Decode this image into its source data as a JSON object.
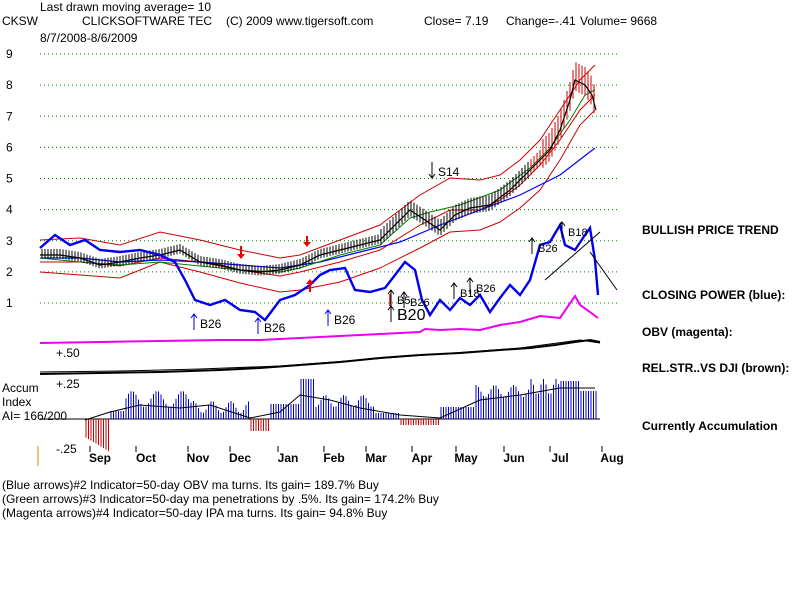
{
  "header": {
    "ticker": "CKSW",
    "company": "CLICKSOFTWARE TEC",
    "copyright": "(C) 2009 www.tigersoft.com",
    "close": "Close=  7.19",
    "change": "Change=-.41",
    "volume": "Volume= 9668",
    "ma_note": "Last drawn moving average= 10",
    "date_range": "8/7/2008-8/6/2009"
  },
  "side_labels": {
    "trend": "BULLISH PRICE TREND",
    "closing_power": "CLOSING POWER (blue):",
    "obv": "OBV (magenta):",
    "relstr": "REL.STR..VS DJI (brown):",
    "accum": "Currently Accumulation"
  },
  "accum_panel": {
    "title1": "Accum",
    "title2": "Index",
    "ai": "AI= 166/200",
    "level_50": "+.50",
    "level_25": "+.25",
    "level_neg25": "-.25"
  },
  "footer": {
    "line1": "(Blue arrows)#2 Indicator=50-day OBV ma turns. Its gain= 189.7% Buy",
    "line2": "(Green arrows)#3 Indicator=50-day ma penetrations by .5%. Its gain= 174.2% Buy",
    "line3": "(Magenta arrows)#4 Indicator=50-day IPA ma turns. Its gain= 94.8% Buy"
  },
  "colors": {
    "price": "#000000",
    "bands": "#cc0000",
    "ma50": "#0000ff",
    "ma_green": "#008000",
    "closing_power": "#0000ee",
    "obv": "#ee00ee",
    "relstr": "#000000",
    "accum_pos": "#0000cc",
    "accum_neg": "#cc0000",
    "grid": "#008000"
  },
  "chart_data": {
    "type": "line",
    "title": "CKSW CLICKSOFTWARE TEC",
    "x_ticks": [
      "Sep",
      "Oct",
      "Nov",
      "Dec",
      "Jan",
      "Feb",
      "Mar",
      "Apr",
      "May",
      "Jun",
      "Jul",
      "Aug"
    ],
    "y_ticks": [
      1,
      2,
      3,
      4,
      5,
      6,
      7,
      8,
      9
    ],
    "ylim": [
      0.5,
      9.5
    ],
    "grid": true,
    "close_price": {
      "months": [
        "Aug",
        "Sep",
        "Oct",
        "Nov",
        "Dec",
        "Jan",
        "Feb",
        "Mar",
        "Apr",
        "May",
        "Jun",
        "Jul",
        "Aug"
      ],
      "values": [
        2.6,
        2.3,
        2.6,
        2.2,
        2.0,
        2.1,
        2.5,
        3.0,
        3.3,
        4.2,
        4.6,
        7.9,
        7.19
      ]
    },
    "annotations": [
      {
        "label": "B26",
        "month": "Nov"
      },
      {
        "label": "B26",
        "month": "Dec"
      },
      {
        "label": "B26",
        "month": "Feb"
      },
      {
        "label": "B5",
        "month": "Apr"
      },
      {
        "label": "B26",
        "month": "Apr"
      },
      {
        "label": "B20",
        "month": "Apr"
      },
      {
        "label": "S14",
        "month": "Apr"
      },
      {
        "label": "B18",
        "month": "May"
      },
      {
        "label": "B26",
        "month": "May"
      },
      {
        "label": "B26",
        "month": "Jun"
      },
      {
        "label": "B18",
        "month": "Jul"
      }
    ]
  }
}
